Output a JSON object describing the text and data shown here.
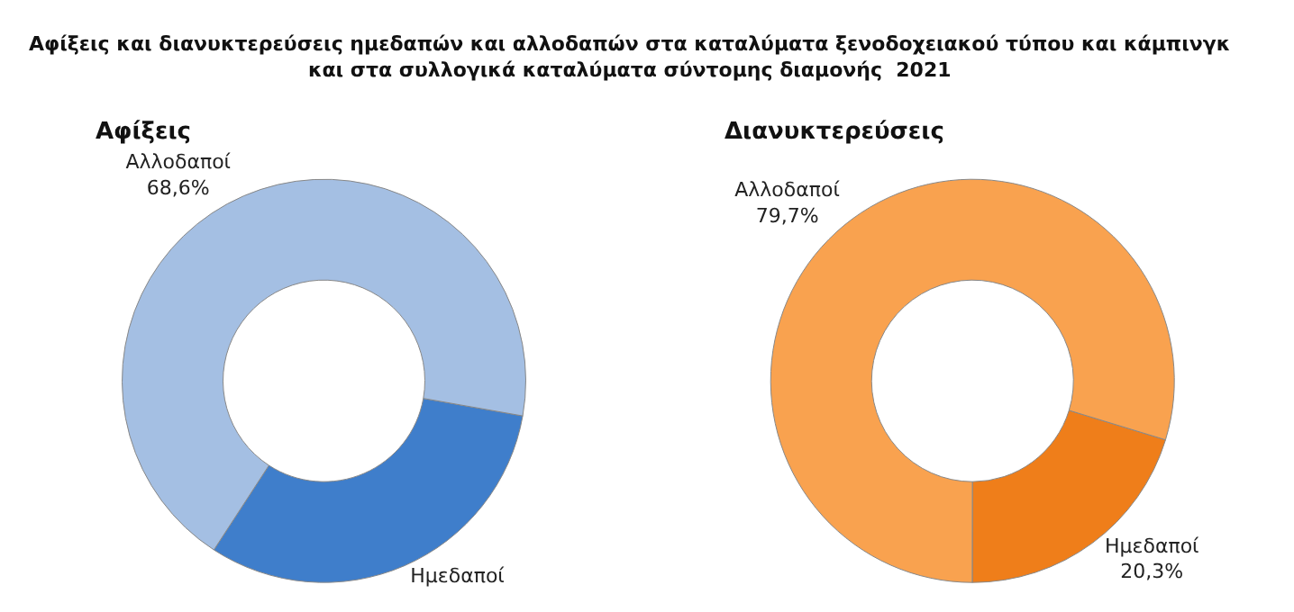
{
  "chart_data": [
    {
      "type": "donut",
      "title": "Αφίξεις",
      "annotations": [
        "Αφίξεις και διανυκτερεύσεις ημεδαπών και αλλοδαπών στα καταλύματα ξενοδοχειακού τύπου και κάμπινγκ\nκαι στα συλλογικά καταλύματα σύντομης διαμονής  2021"
      ],
      "categories": [
        "Ημεδαποί",
        "Αλλοδαποί"
      ],
      "values": [
        31.4,
        68.6
      ],
      "value_labels": [
        null,
        "68,6%"
      ],
      "colors": [
        "#3f7ecb",
        "#a4bfe3"
      ]
    },
    {
      "type": "donut",
      "title": "Διανυκτερεύσεις",
      "categories": [
        "Ημεδαποί",
        "Αλλοδαποί"
      ],
      "values": [
        20.3,
        79.7
      ],
      "value_labels": [
        "20,3%",
        "79,7%"
      ],
      "colors": [
        "#ef7e1a",
        "#f9a24f"
      ]
    }
  ]
}
